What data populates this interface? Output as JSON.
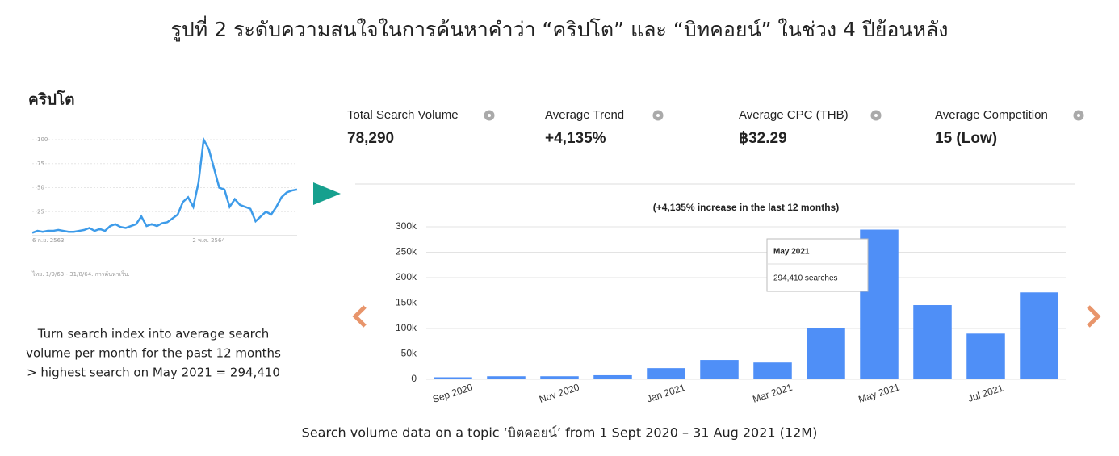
{
  "title": "รูปที่ 2 ระดับความสนใจในการค้นหาคำว่า “คริปโต” และ “บิทคอยน์” ในช่วง 4 ปีย้อนหลัง",
  "left_panel": {
    "heading": "คริปโต",
    "note": "ไทย. 1/9/63 - 31/8/64. การค้นหาเว็บ.",
    "description": [
      "Turn search index into average search",
      "volume per month for the past 12 months",
      "> highest search on May 2021 = 294,410"
    ]
  },
  "stats": [
    {
      "label": "Total Search Volume",
      "value": "78,290",
      "color": "#222222"
    },
    {
      "label": "Average Trend",
      "value": "+4,135%",
      "color": "#3a8a3e"
    },
    {
      "label": "Average CPC (THB)",
      "value": "฿32.29",
      "color": "#222222"
    },
    {
      "label": "Average Competition",
      "value": "15 (Low)",
      "color": "#222222"
    }
  ],
  "tooltip": {
    "title": "May 2021",
    "text": "294,410 searches"
  },
  "caption": "Search volume data on a topic ‘บิตคอยน์’ from 1 Sept 2020 – 31 Aug 2021 (12M)",
  "chart_data": [
    {
      "type": "line",
      "categories": [
        "6 ก.ย. 2563",
        null,
        null,
        null,
        null,
        null,
        null,
        null,
        null,
        null,
        null,
        null,
        null,
        null,
        null,
        null,
        null,
        null,
        null,
        null,
        null,
        null,
        null,
        null,
        null,
        null,
        null,
        null,
        null,
        null,
        null,
        null,
        null,
        null,
        "2 พ.ค. 2564",
        null,
        null,
        null,
        null,
        null,
        null,
        null,
        null,
        null,
        null,
        null,
        null,
        null,
        null,
        null,
        null,
        null
      ],
      "values": [
        3,
        5,
        4,
        5,
        5,
        6,
        5,
        4,
        4,
        5,
        6,
        8,
        5,
        7,
        5,
        10,
        12,
        9,
        8,
        10,
        12,
        20,
        10,
        12,
        10,
        13,
        14,
        18,
        22,
        35,
        40,
        30,
        55,
        100,
        90,
        70,
        50,
        48,
        30,
        38,
        32,
        30,
        28,
        15,
        20,
        25,
        22,
        30,
        40,
        45,
        47,
        48
      ],
      "color": "#3d9be9",
      "ylim": [
        0,
        100
      ],
      "yticks": [
        25,
        50,
        75,
        100
      ],
      "grid": true
    },
    {
      "type": "bar",
      "title": "(+4,135% increase in the last 12 months)",
      "categories": [
        "Sep 2020",
        null,
        "Nov 2020",
        null,
        "Jan 2021",
        null,
        "Mar 2021",
        null,
        "May 2021",
        null,
        "Jul 2021",
        null
      ],
      "values": [
        4000,
        6000,
        6000,
        8000,
        22000,
        38000,
        33000,
        100000,
        294410,
        146000,
        90000,
        171000
      ],
      "color": "#4f8ff7",
      "ylim": [
        0,
        300000
      ],
      "yticks": [
        0,
        {
          "value": 50000,
          "label": "50k"
        },
        {
          "value": 100000,
          "label": "100k"
        },
        {
          "value": 150000,
          "label": "150k"
        },
        {
          "value": 200000,
          "label": "200k"
        },
        {
          "value": 250000,
          "label": "250k"
        },
        {
          "value": 300000,
          "label": "300k"
        }
      ],
      "grid": true
    }
  ]
}
